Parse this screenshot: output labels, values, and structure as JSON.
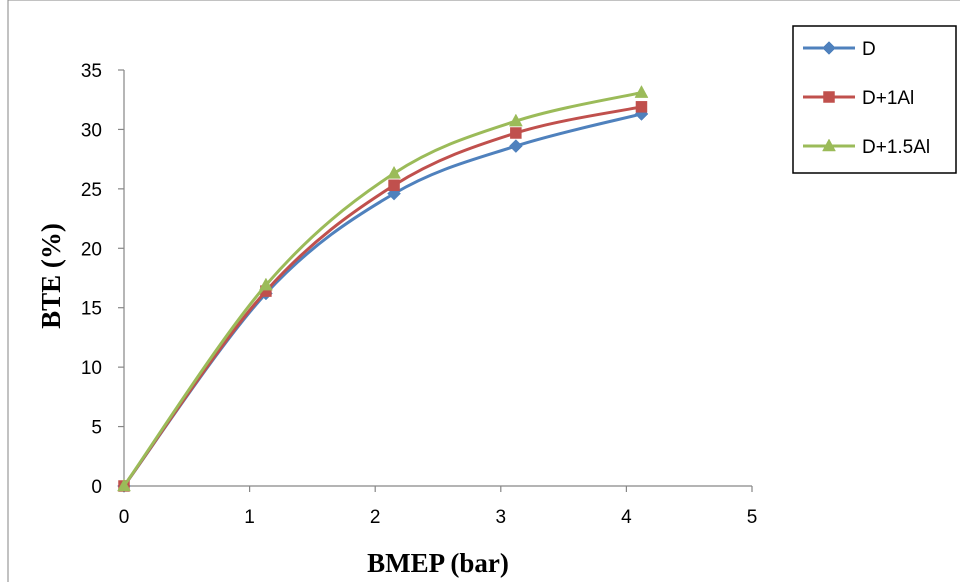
{
  "chart_data": {
    "type": "line",
    "title": "",
    "xlabel": "BMEP (bar)",
    "ylabel": "BTE (%)",
    "xlim": [
      0,
      5
    ],
    "ylim": [
      0,
      35
    ],
    "x_ticks": [
      0,
      1,
      2,
      3,
      4,
      5
    ],
    "y_ticks": [
      0,
      5,
      10,
      15,
      20,
      25,
      30,
      35
    ],
    "grid": false,
    "smooth": true,
    "legend_position": "top-right",
    "series": [
      {
        "name": "D",
        "color": "#4F81BD",
        "marker": "diamond",
        "x": [
          0,
          1.13,
          2.15,
          3.12,
          4.12
        ],
        "y": [
          0,
          16.2,
          24.6,
          28.6,
          31.3
        ]
      },
      {
        "name": "D+1Al",
        "color": "#C0504D",
        "marker": "square",
        "x": [
          0,
          1.13,
          2.15,
          3.12,
          4.12
        ],
        "y": [
          0,
          16.4,
          25.3,
          29.7,
          31.9
        ]
      },
      {
        "name": "D+1.5Al",
        "color": "#9BBB59",
        "marker": "triangle",
        "x": [
          0,
          1.13,
          2.15,
          3.12,
          4.12
        ],
        "y": [
          0,
          16.9,
          26.3,
          30.7,
          33.1
        ]
      }
    ]
  }
}
